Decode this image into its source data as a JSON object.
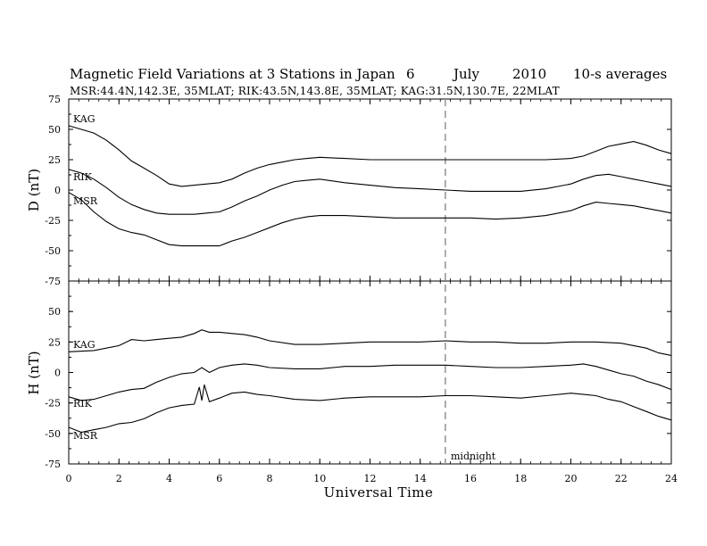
{
  "chart_data": [
    {
      "type": "line",
      "panel": "D",
      "title": "Magnetic Field Variations at 3 Stations in Japan",
      "date": "6",
      "month": "July",
      "year": "2010",
      "averaging": "10-s averages",
      "subtitle": "MSR:44.4N,142.3E, 35MLAT;  RIK:43.5N,143.8E, 35MLAT;  KAG:31.5N,130.7E, 22MLAT",
      "ylabel": "D (nT)",
      "ylim": [
        -75,
        75
      ],
      "yticks": [
        "75",
        "50",
        "25",
        "0",
        "-25",
        "-50",
        "-75"
      ],
      "series": [
        {
          "name": "KAG",
          "x": [
            0,
            0.5,
            1,
            1.5,
            2,
            2.5,
            3,
            3.5,
            4,
            4.5,
            5,
            5.5,
            6,
            6.5,
            7,
            7.5,
            8,
            8.5,
            9,
            9.5,
            10,
            11,
            12,
            13,
            14,
            15,
            16,
            17,
            18,
            19,
            20,
            20.5,
            21,
            21.5,
            22,
            22.5,
            23,
            23.5,
            24
          ],
          "values": [
            53,
            50,
            47,
            41,
            33,
            24,
            18,
            12,
            5,
            3,
            4,
            5,
            6,
            9,
            14,
            18,
            21,
            23,
            25,
            26,
            27,
            26,
            25,
            25,
            25,
            25,
            25,
            25,
            25,
            25,
            26,
            28,
            32,
            36,
            38,
            40,
            37,
            33,
            30
          ]
        },
        {
          "name": "RIK",
          "x": [
            0,
            0.5,
            1,
            1.5,
            2,
            2.5,
            3,
            3.5,
            4,
            4.5,
            5,
            5.5,
            6,
            6.5,
            7,
            7.5,
            8,
            8.5,
            9,
            9.5,
            10,
            11,
            12,
            13,
            14,
            15,
            16,
            17,
            18,
            19,
            20,
            20.5,
            21,
            21.5,
            22,
            22.5,
            23,
            23.5,
            24
          ],
          "values": [
            17,
            14,
            9,
            2,
            -6,
            -12,
            -16,
            -19,
            -20,
            -20,
            -20,
            -19,
            -18,
            -14,
            -9,
            -5,
            0,
            4,
            7,
            8,
            9,
            6,
            4,
            2,
            1,
            0,
            -1,
            -1,
            -1,
            1,
            5,
            9,
            12,
            13,
            11,
            9,
            7,
            5,
            3
          ]
        },
        {
          "name": "MSR",
          "x": [
            0,
            0.5,
            1,
            1.5,
            2,
            2.5,
            3,
            3.5,
            4,
            4.5,
            5,
            5.5,
            6,
            6.5,
            7,
            7.5,
            8,
            8.5,
            9,
            9.5,
            10,
            11,
            12,
            13,
            14,
            15,
            16,
            17,
            18,
            19,
            20,
            20.5,
            21,
            21.5,
            22,
            22.5,
            23,
            23.5,
            24
          ],
          "values": [
            -2,
            -8,
            -18,
            -26,
            -32,
            -35,
            -37,
            -41,
            -45,
            -46,
            -46,
            -46,
            -46,
            -42,
            -39,
            -35,
            -31,
            -27,
            -24,
            -22,
            -21,
            -21,
            -22,
            -23,
            -23,
            -23,
            -23,
            -24,
            -23,
            -21,
            -17,
            -13,
            -10,
            -11,
            -12,
            -13,
            -15,
            -17,
            -19
          ]
        }
      ]
    },
    {
      "type": "line",
      "panel": "H",
      "ylabel": "H (nT)",
      "xlabel": "Universal Time",
      "xlim": [
        0,
        24
      ],
      "xticks": [
        "0",
        "2",
        "4",
        "6",
        "8",
        "10",
        "12",
        "14",
        "16",
        "18",
        "20",
        "22",
        "24"
      ],
      "ylim": [
        -75,
        75
      ],
      "yticks": [
        "75",
        "50",
        "25",
        "0",
        "-25",
        "-50",
        "-75"
      ],
      "annotation": {
        "text": "midnight",
        "x": 15
      },
      "series": [
        {
          "name": "KAG",
          "x": [
            0,
            1,
            2,
            2.5,
            3,
            3.5,
            4,
            4.5,
            5,
            5.3,
            5.6,
            6,
            6.5,
            7,
            7.5,
            8,
            9,
            10,
            11,
            12,
            13,
            14,
            15,
            16,
            17,
            18,
            19,
            20,
            21,
            22,
            22.5,
            23,
            23.5,
            24
          ],
          "values": [
            17,
            18,
            22,
            27,
            26,
            27,
            28,
            29,
            32,
            35,
            33,
            33,
            32,
            31,
            29,
            26,
            23,
            23,
            24,
            25,
            25,
            25,
            26,
            25,
            25,
            24,
            24,
            25,
            25,
            24,
            22,
            20,
            16,
            14
          ]
        },
        {
          "name": "RIK",
          "x": [
            0,
            0.5,
            1,
            1.5,
            2,
            2.5,
            3,
            3.5,
            4,
            4.5,
            5,
            5.3,
            5.6,
            6,
            6.5,
            7,
            7.5,
            8,
            9,
            10,
            11,
            12,
            13,
            14,
            15,
            16,
            17,
            18,
            19,
            20,
            20.5,
            21,
            21.5,
            22,
            22.5,
            23,
            23.5,
            24
          ],
          "values": [
            -20,
            -23,
            -22,
            -19,
            -16,
            -14,
            -13,
            -8,
            -4,
            -1,
            0,
            4,
            0,
            4,
            6,
            7,
            6,
            4,
            3,
            3,
            5,
            5,
            6,
            6,
            6,
            5,
            4,
            4,
            5,
            6,
            7,
            5,
            2,
            -1,
            -3,
            -7,
            -10,
            -14
          ]
        },
        {
          "name": "MSR",
          "x": [
            0,
            0.5,
            1,
            1.5,
            2,
            2.5,
            3,
            3.5,
            4,
            4.5,
            5,
            5.2,
            5.3,
            5.4,
            5.6,
            6,
            6.5,
            7,
            7.5,
            8,
            9,
            10,
            11,
            12,
            13,
            14,
            15,
            16,
            17,
            18,
            19,
            20,
            20.5,
            21,
            21.5,
            22,
            22.5,
            23,
            23.5,
            24
          ],
          "values": [
            -45,
            -49,
            -47,
            -45,
            -42,
            -41,
            -38,
            -33,
            -29,
            -27,
            -26,
            -12,
            -23,
            -10,
            -24,
            -21,
            -17,
            -16,
            -18,
            -19,
            -22,
            -23,
            -21,
            -20,
            -20,
            -20,
            -19,
            -19,
            -20,
            -21,
            -19,
            -17,
            -18,
            -19,
            -22,
            -24,
            -28,
            -32,
            -36,
            -39
          ]
        }
      ]
    }
  ]
}
